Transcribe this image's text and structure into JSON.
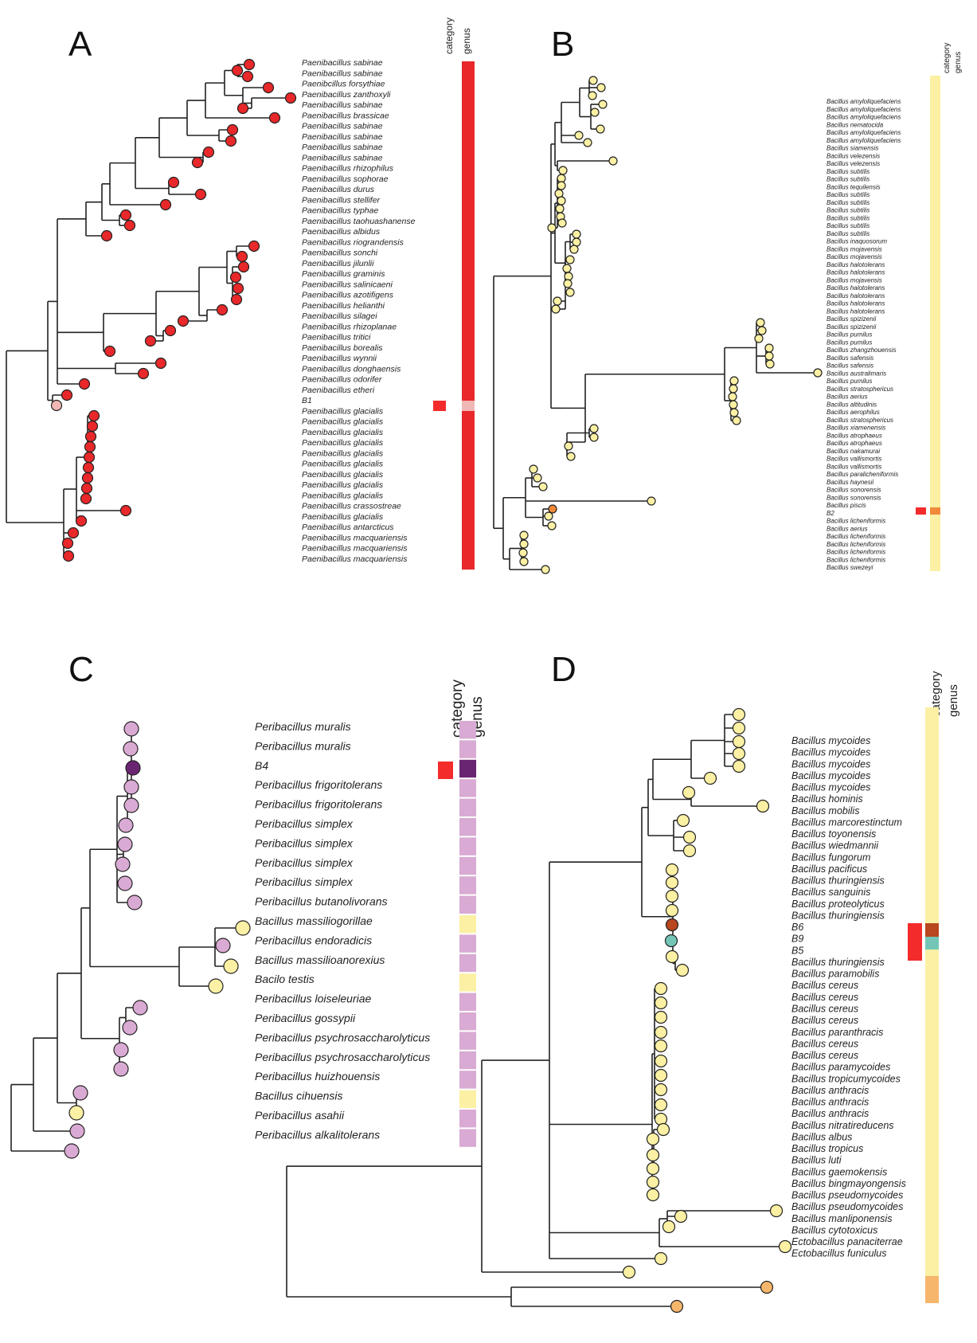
{
  "colors": {
    "paenibacillus": "#e8282a",
    "bacillus": "#fbf0a3",
    "peribacillus": "#d9aad3",
    "peribacillus_dark": "#6a2572",
    "category_red": "#f32b2b",
    "b1_pink": "#f0b7b5",
    "b2_orange": "#f08a3a",
    "b6_brown": "#b8461e",
    "b9_teal": "#73c6b6",
    "ecto_orange": "#f6b66b"
  },
  "panels": {
    "A": {
      "letter": "A",
      "col_category": "category",
      "col_genus": "genus",
      "labels": [
        "Paenibacillus sabinae",
        "Paenibacillus sabinae",
        "Paenibcillus forsythiae",
        "Paenibacillus zanthoxyli",
        "Paenibacillus sabinae",
        "Paenibacillus brassicae",
        "Paenibacillus sabinae",
        "Paenibacillus sabinae",
        "Paenibacillus sabinae",
        "Paenibacillus sabinae",
        "Paenibacillus rhizophilus",
        "Paenibacillus sophorae",
        "Paenibacillus durus",
        "Paenibacillus stellifer",
        "Paenibacillus typhae",
        "Paenibacillus taohuashanense",
        "Paenibacillus albidus",
        "Paenibacillus riograndensis",
        "Paenibacillus sonchi",
        "Paenibacillus jilunlii",
        "Paenibacillus graminis",
        "Paenibacillus salinicaeni",
        "Paenibacillus azotifigens",
        "Paenibacillus helianthi",
        "Paenibacillus silagei",
        "Paenibacillus rhizoplanae",
        "Paenibacillus tritici",
        "Paenibacillus borealis",
        "Paenibacillus wynnii",
        "Paenibacillus donghaensis",
        "Paenibacillus odorifer",
        "Paenibacillus etheri",
        "B1",
        "Paenibacillus glacialis",
        "Paenibacillus glacialis",
        "Paenibacillus glacialis",
        "Paenibacillus glacialis",
        "Paenibacillus glacialis",
        "Paenibacillus glacialis",
        "Paenibacillus glacialis",
        "Paenibacillus glacialis",
        "Paenibacillus glacialis",
        "Paenibacillus crassostreae",
        "Paenibacillus glacialis",
        "Paenibacillus antarcticus",
        "Paenibacillus macquariensis",
        "Paenibacillus macquariensis",
        "Paenibacillus macquariensis"
      ]
    },
    "B": {
      "letter": "B",
      "col_category": "category",
      "col_genus": "genus",
      "labels": [
        "Bacillus amyloliquefaciens",
        "Bacillus amyloliquefaciens",
        "Bacillus amyloliquefaciens",
        "Bacillus nematocida",
        "Bacillus amyloliquefaciens",
        "Bacillus amyloliquefaciens",
        "Bacillus siamensis",
        "Bacillus velezensis",
        "Bacillus velezensis",
        "Bacillus subtilis",
        "Bacillus subtilis",
        "Bacillus tequilensis",
        "Bacillus subtilis",
        "Bacillus subtilis",
        "Bacillus subtilis",
        "Bacillus subtilis",
        "Bacillus subtilis",
        "Bacillus subtilis",
        "Bacillus inaquosorum",
        "Bacillus mojavensis",
        "Bacillus mojavensis",
        "Bacillus halotolerans",
        "Bacillus halotolerans",
        "Bacillus mojavensis",
        "Bacillus halotolerans",
        "Bacillus halotolerans",
        "Bacillus halotolerans",
        "Bacillus halotolerans",
        "Bacillus spizizenii",
        "Bacillus spizizenii",
        "Bacillus pumilus",
        "Bacillus pumilus",
        "Bacillus zhangzhouensis",
        "Bacillus safensis",
        "Bacillus safensis",
        "Bacillus australimaris",
        "Bacillus pumilus",
        "Bacillus stratosphericus",
        "Bacillus aerius",
        "Bacillus altitudinis",
        "Bacillus aerophilus",
        "Bacillus stratosphericus",
        "Bacillus xiamenensis",
        "Bacillus atrophaeus",
        "Bacillus atrophaeus",
        "Bacillus nakamurai",
        "Bacillus vallismortis",
        "Bacillus vallismortis",
        "Bacillus paralicheniformis",
        "Bacillus haynesii",
        "Bacillus sonorensis",
        "Bacillus sonorensis",
        "Bacillus piscis",
        "B2",
        "Bacillus licheniformis",
        "Bacillus aerius",
        "Bacillus licheniformis",
        "Bacillus licheniformis",
        "Bacillus licheniformis",
        "Bacillus licheniformis",
        "Bacillus swezeyi"
      ]
    },
    "C": {
      "letter": "C",
      "col_category": "category",
      "col_genus": "genus",
      "labels": [
        "Peribacillus muralis",
        "Peribacillus muralis",
        "B4",
        "Peribacillus frigoritolerans",
        "Peribacillus frigoritolerans",
        "Peribacillus simplex",
        "Peribacillus simplex",
        "Peribacillus simplex",
        "Peribacillus simplex",
        "Peribacillus butanolivorans",
        "Bacillus massiliogorillae",
        "Peribacillus endoradicis",
        "Bacillus massilioanorexius",
        "Bacilo testis",
        "Peribacillus loiseleuriae",
        "Peribacillus gossypii",
        "Peribacillus psychrosaccharolyticus",
        "Peribacillus psychrosaccharolyticus",
        "Peribacillus huizhouensis",
        "Bacillus cihuensis",
        "Peribacillus asahii",
        "Peribacillus alkalitolerans"
      ]
    },
    "D": {
      "letter": "D",
      "col_category": "category",
      "col_genus": "genus",
      "labels": [
        "Bacillus mycoides",
        "Bacillus mycoides",
        "Bacillus mycoides",
        "Bacillus mycoides",
        "Bacillus mycoides",
        "Bacillus hominis",
        "Bacillus mobilis",
        "Bacillus marcorestinctum",
        "Bacillus toyonensis",
        "Bacillus wiedmannii",
        "Bacillus fungorum",
        "Bacillus pacificus",
        "Bacillus thuringiensis",
        "Bacillus sanguinis",
        "Bacillus proteolyticus",
        "Bacillus thuringiensis",
        "B6",
        "B9",
        "B5",
        "Bacillus thuringiensis",
        "Bacillus paramobilis",
        "Bacillus cereus",
        "Bacillus cereus",
        "Bacillus cereus",
        "Bacillus cereus",
        "Bacillus paranthracis",
        "Bacillus cereus",
        "Bacillus cereus",
        "Bacillus paramycoides",
        "Bacillus tropicumycoides",
        "Bacillus anthracis",
        "Bacillus anthracis",
        "Bacillus anthracis",
        "Bacillus nitratireducens",
        "Bacillus albus",
        "Bacillus tropicus",
        "Bacillus luti",
        "Bacillus gaemokensis",
        "Bacillus bingmayongensis",
        "Bacillus pseudomycoides",
        "Bacillus pseudomycoides",
        "Bacillus manliponensis",
        "Bacillus cytotoxicus",
        "Ectobacillus panaciterrae",
        "Ectobacillus funiculus"
      ]
    }
  }
}
